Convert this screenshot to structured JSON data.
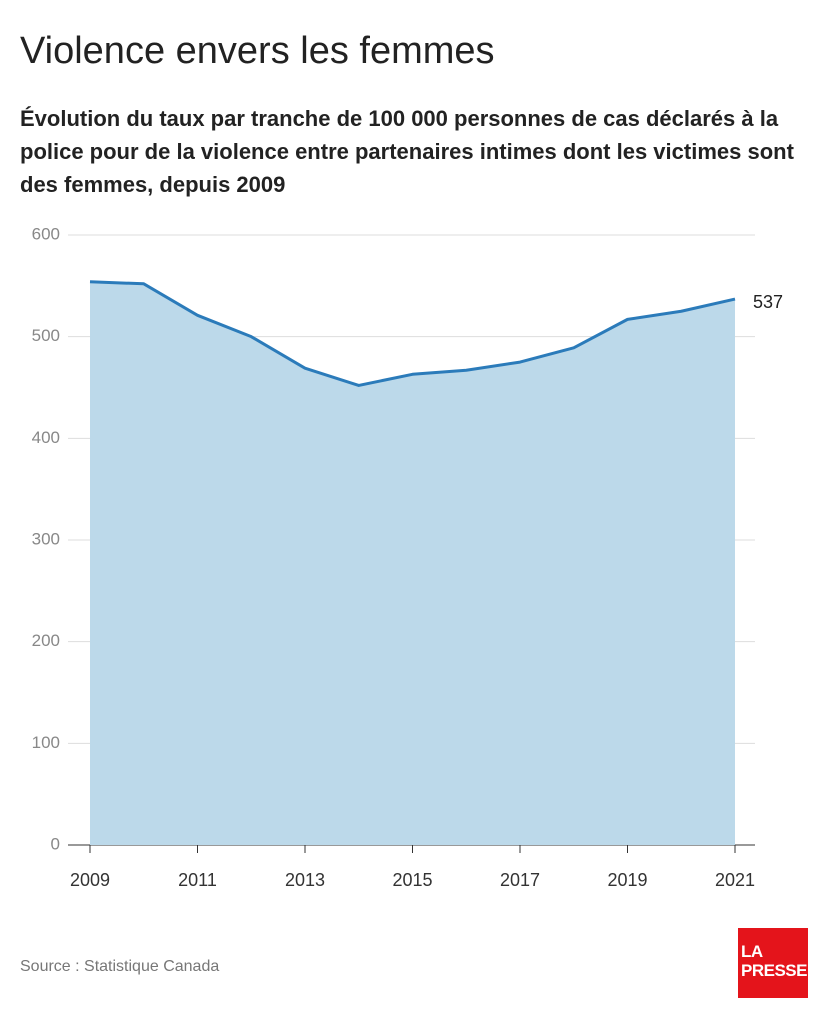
{
  "chart_data": {
    "type": "area",
    "title": "Violence envers les femmes",
    "subtitle": "Évolution du taux par tranche de 100 000 personnes de cas déclarés à la police pour de la violence entre partenaires intimes dont les victimes sont des femmes, depuis 2009",
    "x": [
      2009,
      2010,
      2011,
      2012,
      2013,
      2014,
      2015,
      2016,
      2017,
      2018,
      2019,
      2020,
      2021
    ],
    "values": [
      554,
      552,
      521,
      500,
      469,
      452,
      463,
      467,
      475,
      489,
      517,
      525,
      537
    ],
    "color": "#2b7bba",
    "fill_color": "#bcd9ea",
    "xlim": [
      2009,
      2021
    ],
    "xticks": [
      2009,
      2011,
      2013,
      2015,
      2017,
      2019,
      2021
    ],
    "ylim": [
      0,
      600
    ],
    "yticks": [
      0,
      100,
      200,
      300,
      400,
      500,
      600
    ],
    "grid": true,
    "source": "Source : Statistique Canada",
    "logo": [
      "LA",
      "PRESSE"
    ]
  }
}
